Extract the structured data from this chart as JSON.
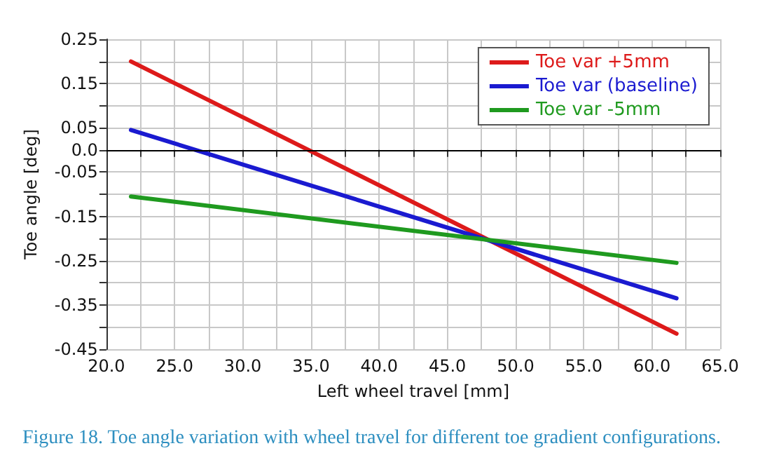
{
  "chart_data": {
    "type": "line",
    "xlabel": "Left wheel travel [mm]",
    "ylabel": "Toe angle [deg]",
    "annotations": [
      "Figure 18. Toe angle variation with wheel travel for different toe gradient configurations."
    ],
    "x": [
      21.8,
      61.8
    ],
    "series": [
      {
        "name": "Toe var +5mm",
        "color": "#dd1a1a",
        "values": [
          0.2,
          -0.415
        ]
      },
      {
        "name": "Toe var (baseline)",
        "color": "#1a1ad0",
        "values": [
          0.045,
          -0.335
        ]
      },
      {
        "name": "Toe var -5mm",
        "color": "#1f9a1f",
        "values": [
          -0.105,
          -0.255
        ]
      }
    ],
    "xlim": [
      20,
      65
    ],
    "xticks": [
      {
        "value": 20,
        "label": "20.0"
      },
      {
        "value": 22.5,
        "label": null
      },
      {
        "value": 25,
        "label": "25.0"
      },
      {
        "value": 27.5,
        "label": null
      },
      {
        "value": 30,
        "label": "30.0"
      },
      {
        "value": 32.5,
        "label": null
      },
      {
        "value": 35,
        "label": "35.0"
      },
      {
        "value": 37.5,
        "label": null
      },
      {
        "value": 40,
        "label": "40.0"
      },
      {
        "value": 42.5,
        "label": null
      },
      {
        "value": 45,
        "label": "45.0"
      },
      {
        "value": 47.5,
        "label": null
      },
      {
        "value": 50,
        "label": "50.0"
      },
      {
        "value": 52.5,
        "label": null
      },
      {
        "value": 55,
        "label": "55.0"
      },
      {
        "value": 57.5,
        "label": null
      },
      {
        "value": 60,
        "label": "60.0"
      },
      {
        "value": 62.5,
        "label": null
      },
      {
        "value": 65,
        "label": "65.0"
      }
    ],
    "ylim": [
      -0.45,
      0.25
    ],
    "yticks": [
      {
        "value": -0.45,
        "label": "-0.45"
      },
      {
        "value": -0.4,
        "label": null
      },
      {
        "value": -0.35,
        "label": "-0.35"
      },
      {
        "value": -0.3,
        "label": null
      },
      {
        "value": -0.25,
        "label": "-0.25"
      },
      {
        "value": -0.2,
        "label": null
      },
      {
        "value": -0.15,
        "label": "-0.15"
      },
      {
        "value": -0.1,
        "label": null
      },
      {
        "value": -0.05,
        "label": "-0.05"
      },
      {
        "value": 0,
        "label": "0.0"
      },
      {
        "value": 0.05,
        "label": "0.05"
      },
      {
        "value": 0.1,
        "label": null
      },
      {
        "value": 0.15,
        "label": "0.15"
      },
      {
        "value": 0.2,
        "label": null
      },
      {
        "value": 0.25,
        "label": "0.25"
      }
    ],
    "ref_lines": [
      {
        "axis": "y",
        "value": 0,
        "label": null,
        "color": "#000000"
      }
    ],
    "grid": true,
    "legend": "top right",
    "marker": "none",
    "line_style": "solid"
  }
}
